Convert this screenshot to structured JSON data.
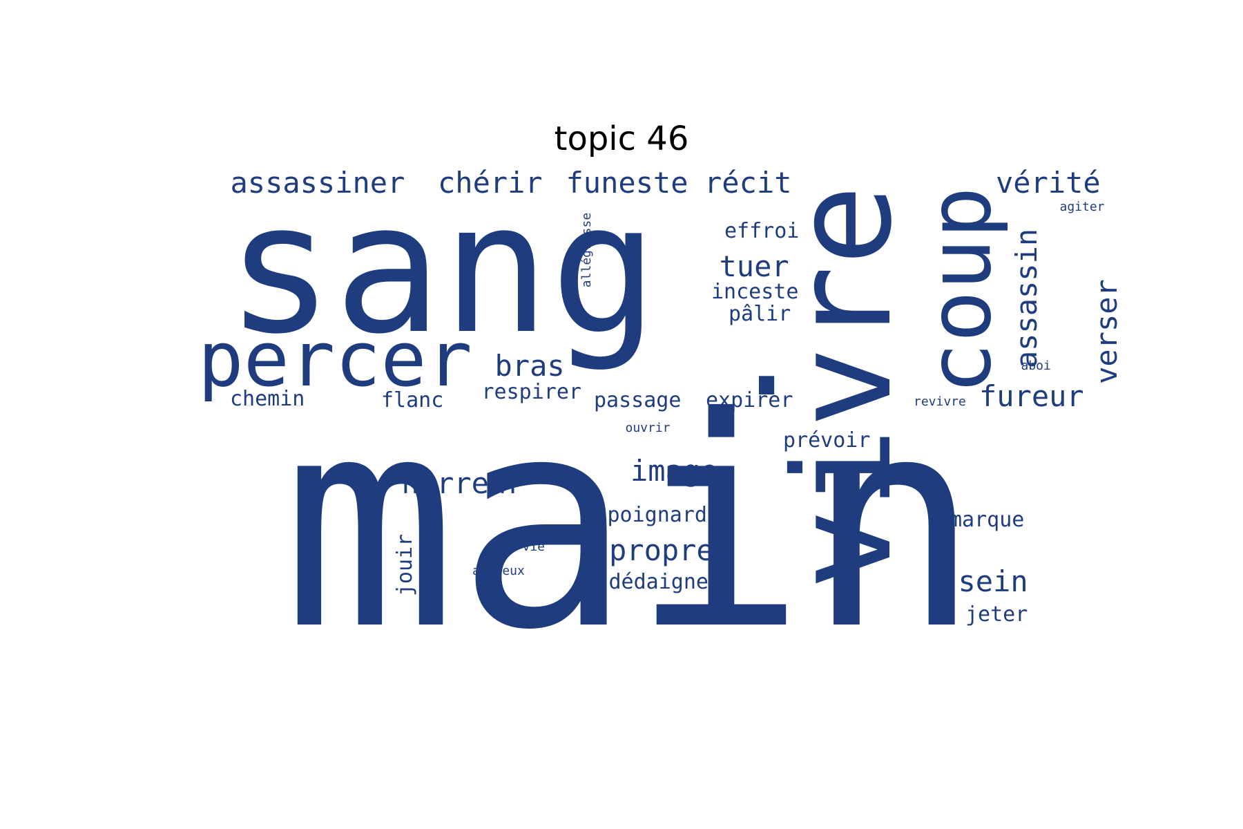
{
  "title": "topic 46",
  "color": "#1f3c7e",
  "words": [
    {
      "text": "main"
    },
    {
      "text": "sang"
    },
    {
      "text": "."
    },
    {
      "text": "vivre"
    },
    {
      "text": "percer"
    },
    {
      "text": "coup"
    },
    {
      "text": "assassiner"
    },
    {
      "text": "chérir"
    },
    {
      "text": "funeste"
    },
    {
      "text": "récit"
    },
    {
      "text": "vérité"
    },
    {
      "text": "tuer"
    },
    {
      "text": "assassin"
    },
    {
      "text": "verser"
    },
    {
      "text": "bras"
    },
    {
      "text": "fureur"
    },
    {
      "text": "horreur"
    },
    {
      "text": "image"
    },
    {
      "text": "propre"
    },
    {
      "text": "sein"
    },
    {
      "text": "effroi"
    },
    {
      "text": "inceste"
    },
    {
      "text": "pâlir"
    },
    {
      "text": "chemin"
    },
    {
      "text": "flanc"
    },
    {
      "text": "respirer"
    },
    {
      "text": "passage"
    },
    {
      "text": "expirer"
    },
    {
      "text": "prévoir"
    },
    {
      "text": "poignard"
    },
    {
      "text": "dédaigner"
    },
    {
      "text": "marque"
    },
    {
      "text": "jeter"
    },
    {
      "text": "jouir"
    },
    {
      "text": "agiter"
    },
    {
      "text": "allégresse"
    },
    {
      "text": "aboi"
    },
    {
      "text": "revivre"
    },
    {
      "text": "ouvrir"
    },
    {
      "text": "vie"
    },
    {
      "text": "affreux"
    }
  ]
}
